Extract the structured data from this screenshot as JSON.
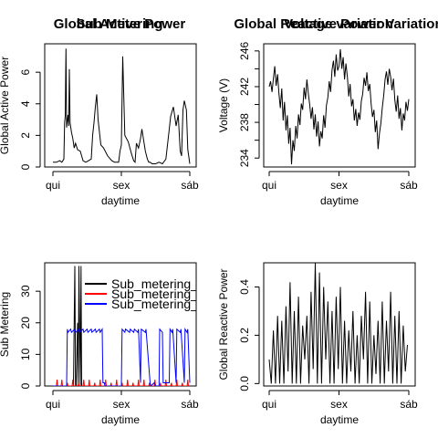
{
  "chart_data": [
    {
      "type": "line",
      "title": "Global Active Power",
      "xlabel": "daytime",
      "ylabel": "Global Active Power",
      "x_ticks": [
        "qui",
        "sex",
        "sáb"
      ],
      "y_ticks": [
        0,
        2,
        4,
        6
      ],
      "xlim": [
        0,
        2
      ],
      "ylim": [
        0,
        7.8
      ],
      "series": [
        {
          "color": "#000000",
          "x": [
            0,
            0.05,
            0.1,
            0.13,
            0.16,
            0.17,
            0.18,
            0.19,
            0.2,
            0.22,
            0.23,
            0.24,
            0.25,
            0.27,
            0.29,
            0.31,
            0.33,
            0.36,
            0.4,
            0.44,
            0.48,
            0.52,
            0.56,
            0.58,
            0.6,
            0.62,
            0.64,
            0.66,
            0.68,
            0.7,
            0.74,
            0.8,
            0.86,
            0.9,
            0.93,
            0.96,
            0.98,
            1.0,
            1.02,
            1.05,
            1.1,
            1.15,
            1.18,
            1.2,
            1.22,
            1.25,
            1.28,
            1.3,
            1.35,
            1.38,
            1.4,
            1.42,
            1.45,
            1.5,
            1.55,
            1.6,
            1.65,
            1.7,
            1.72,
            1.76,
            1.8,
            1.83,
            1.86,
            1.88,
            1.9,
            1.92,
            1.95,
            1.97,
            2.0
          ],
          "y": [
            0.3,
            0.3,
            0.4,
            0.3,
            0.5,
            2.8,
            3.2,
            7.5,
            2.5,
            3.3,
            2.6,
            6.2,
            2.8,
            2.2,
            1.8,
            1.2,
            1.5,
            1.1,
            1.0,
            0.4,
            0.3,
            0.4,
            0.5,
            2.0,
            2.8,
            3.8,
            4.6,
            3.0,
            2.2,
            1.4,
            1.2,
            0.7,
            0.4,
            0.3,
            0.3,
            0.3,
            1.0,
            1.4,
            7.0,
            2.0,
            1.6,
            0.8,
            0.4,
            0.3,
            1.5,
            1.2,
            1.8,
            2.4,
            1.0,
            0.5,
            0.3,
            0.3,
            0.2,
            0.2,
            0.3,
            0.2,
            0.5,
            2.4,
            3.2,
            3.8,
            2.6,
            3.3,
            1.0,
            0.7,
            3.6,
            4.2,
            3.6,
            1.1,
            0.2
          ]
        }
      ]
    },
    {
      "type": "line",
      "title": "Voltage variation",
      "xlabel": "daytime",
      "ylabel": "Voltage (V)",
      "x_ticks": [
        "qui",
        "sex",
        "sáb"
      ],
      "y_ticks": [
        234,
        236,
        238,
        240,
        242,
        244,
        246
      ],
      "y_tick_labels": [
        "234",
        "",
        "238",
        "",
        "242",
        "",
        "246"
      ],
      "xlim": [
        0,
        2
      ],
      "ylim": [
        233,
        246.8
      ],
      "series": [
        {
          "color": "#000000",
          "x": [
            0,
            0.02,
            0.04,
            0.06,
            0.08,
            0.1,
            0.12,
            0.14,
            0.16,
            0.18,
            0.2,
            0.22,
            0.24,
            0.26,
            0.28,
            0.3,
            0.32,
            0.34,
            0.36,
            0.38,
            0.4,
            0.42,
            0.44,
            0.46,
            0.48,
            0.5,
            0.52,
            0.54,
            0.56,
            0.58,
            0.6,
            0.62,
            0.64,
            0.66,
            0.68,
            0.7,
            0.72,
            0.74,
            0.76,
            0.78,
            0.8,
            0.82,
            0.84,
            0.86,
            0.88,
            0.9,
            0.92,
            0.94,
            0.96,
            0.98,
            1.0,
            1.02,
            1.04,
            1.06,
            1.08,
            1.1,
            1.12,
            1.14,
            1.16,
            1.18,
            1.2,
            1.22,
            1.24,
            1.26,
            1.28,
            1.3,
            1.32,
            1.34,
            1.36,
            1.38,
            1.4,
            1.42,
            1.44,
            1.46,
            1.48,
            1.5,
            1.52,
            1.54,
            1.56,
            1.58,
            1.6,
            1.62,
            1.64,
            1.66,
            1.68,
            1.7,
            1.72,
            1.74,
            1.76,
            1.78,
            1.8,
            1.82,
            1.84,
            1.86,
            1.88,
            1.9,
            1.92,
            1.94,
            1.96,
            1.98,
            2.0
          ],
          "y": [
            242.0,
            242.6,
            241.4,
            242.9,
            244.3,
            242.1,
            243.4,
            241.2,
            239.6,
            241.8,
            238.2,
            240.3,
            237.1,
            238.8,
            235.6,
            237.4,
            233.3,
            236.0,
            234.8,
            237.6,
            236.2,
            238.9,
            237.7,
            240.1,
            239.4,
            241.9,
            240.6,
            242.8,
            241.3,
            240.0,
            238.4,
            239.7,
            237.2,
            238.9,
            236.4,
            238.1,
            235.3,
            237.0,
            236.2,
            238.8,
            237.4,
            239.9,
            240.8,
            242.6,
            241.4,
            243.9,
            244.9,
            243.1,
            245.6,
            243.8,
            244.3,
            246.2,
            244.0,
            245.3,
            242.8,
            244.6,
            243.1,
            240.9,
            242.3,
            239.8,
            240.6,
            238.2,
            239.5,
            237.6,
            239.1,
            238.3,
            240.4,
            241.2,
            243.0,
            242.1,
            243.6,
            241.5,
            242.3,
            240.1,
            238.6,
            239.4,
            236.9,
            238.2,
            235.0,
            236.8,
            237.9,
            239.6,
            241.0,
            242.8,
            243.7,
            242.2,
            244.0,
            243.1,
            241.6,
            242.9,
            240.5,
            239.2,
            241.0,
            238.4,
            239.6,
            237.1,
            239.0,
            238.2,
            240.3,
            239.3,
            240.6
          ]
        }
      ]
    },
    {
      "type": "line",
      "title": "Sub Metering",
      "xlabel": "daytime",
      "ylabel": "Sub Metering",
      "x_ticks": [
        "qui",
        "sex",
        "sáb"
      ],
      "y_ticks": [
        0,
        10,
        20,
        30
      ],
      "xlim": [
        0,
        2
      ],
      "ylim": [
        0,
        39
      ],
      "legend": {
        "position": "top-right",
        "entries": [
          "Sub_metering_1",
          "Sub_metering_2",
          "Sub_metering_3"
        ]
      },
      "series": [
        {
          "name": "Sub_metering_1",
          "color": "#000000",
          "x": [
            0,
            0.3,
            0.32,
            0.33,
            0.34,
            0.36,
            0.37,
            0.38,
            0.4,
            0.41,
            0.42,
            0.44,
            2.0
          ],
          "y": [
            0,
            0,
            38,
            0,
            0,
            20,
            0,
            38,
            0,
            38,
            0,
            0,
            0
          ]
        },
        {
          "name": "Sub_metering_2",
          "color": "#ff0000",
          "x": [
            0.05,
            0.06,
            0.07,
            0.12,
            0.13,
            0.14,
            0.2,
            0.21,
            0.22,
            0.28,
            0.29,
            0.3,
            0.36,
            0.37,
            0.38,
            0.44,
            0.45,
            0.46,
            0.52,
            0.53,
            0.54,
            0.6,
            0.61,
            0.62,
            0.68,
            0.69,
            0.7,
            0.76,
            0.77,
            0.78,
            0.84,
            0.85,
            0.86,
            0.92,
            0.93,
            0.94,
            1.0,
            1.01,
            1.02,
            1.08,
            1.09,
            1.1,
            1.16,
            1.17,
            1.18,
            1.24,
            1.25,
            1.26,
            1.32,
            1.33,
            1.34,
            1.4,
            1.41,
            1.42,
            1.48,
            1.49,
            1.5,
            1.56,
            1.57,
            1.58,
            1.64,
            1.65,
            1.66,
            1.72,
            1.73,
            1.74,
            1.8,
            1.81,
            1.82,
            1.88,
            1.89,
            1.9,
            1.96,
            1.97,
            1.98
          ],
          "y": [
            0,
            2,
            0,
            0,
            2,
            0,
            0,
            1,
            0,
            0,
            2,
            0,
            0,
            1,
            0,
            0,
            2,
            0,
            0,
            2,
            0,
            0,
            1,
            0,
            0,
            2,
            0,
            0,
            2,
            0,
            0,
            1,
            0,
            0,
            2,
            0,
            0,
            1,
            0,
            0,
            2,
            0,
            0,
            1,
            0,
            0,
            2,
            0,
            0,
            2,
            0,
            0,
            1,
            0,
            0,
            2,
            0,
            0,
            1,
            0,
            0,
            2,
            0,
            0,
            1,
            0,
            0,
            2,
            0,
            0,
            1,
            0,
            0,
            2,
            0
          ]
        },
        {
          "name": "Sub_metering_3",
          "color": "#0000ff",
          "x": [
            0,
            0.2,
            0.21,
            0.22,
            0.26,
            0.27,
            0.32,
            0.33,
            0.38,
            0.39,
            0.44,
            0.45,
            0.5,
            0.51,
            0.56,
            0.57,
            0.62,
            0.63,
            0.68,
            0.69,
            0.72,
            0.73,
            0.75,
            0.76,
            1.0,
            1.01,
            1.05,
            1.06,
            1.12,
            1.13,
            1.18,
            1.19,
            1.24,
            1.25,
            1.28,
            1.29,
            1.35,
            1.36,
            1.42,
            1.43,
            1.48,
            1.5,
            1.55,
            1.56,
            1.6,
            1.61,
            1.7,
            1.71,
            1.74,
            1.75,
            1.8,
            1.81,
            1.86,
            1.87,
            1.92,
            1.93,
            1.96,
            1.97,
            2.0
          ],
          "y": [
            0,
            0,
            18,
            17,
            18,
            17,
            18,
            17,
            18,
            17,
            18,
            17,
            18,
            17,
            18,
            17,
            18,
            17,
            18,
            17,
            18,
            1,
            1,
            0,
            0,
            18,
            17,
            18,
            17,
            18,
            17,
            18,
            17,
            18,
            1,
            18,
            17,
            18,
            1,
            0,
            1,
            0,
            0,
            18,
            17,
            1,
            1,
            18,
            17,
            18,
            1,
            18,
            17,
            18,
            1,
            18,
            17,
            18,
            1
          ]
        }
      ]
    },
    {
      "type": "line",
      "title": "Global Reactive Power Variation",
      "xlabel": "daytime",
      "ylabel": "Global Reactive Power",
      "x_ticks": [
        "qui",
        "sex",
        "sáb"
      ],
      "y_ticks": [
        0.0,
        0.2,
        0.4
      ],
      "y_tick_labels": [
        "0.0",
        "0.2",
        "0.4"
      ],
      "xlim": [
        0,
        2
      ],
      "ylim": [
        -0.01,
        0.5
      ],
      "series": [
        {
          "color": "#000000",
          "x": [
            0,
            0.03,
            0.06,
            0.09,
            0.12,
            0.15,
            0.18,
            0.21,
            0.24,
            0.27,
            0.3,
            0.33,
            0.36,
            0.39,
            0.42,
            0.45,
            0.48,
            0.51,
            0.54,
            0.57,
            0.6,
            0.63,
            0.66,
            0.69,
            0.72,
            0.75,
            0.78,
            0.81,
            0.84,
            0.87,
            0.9,
            0.93,
            0.96,
            0.99,
            1.02,
            1.05,
            1.08,
            1.11,
            1.14,
            1.17,
            1.2,
            1.23,
            1.26,
            1.29,
            1.32,
            1.35,
            1.38,
            1.41,
            1.44,
            1.47,
            1.5,
            1.53,
            1.56,
            1.59,
            1.62,
            1.65,
            1.68,
            1.71,
            1.74,
            1.77,
            1.8,
            1.83,
            1.86,
            1.89,
            1.92,
            1.95,
            1.98
          ],
          "y": [
            0.1,
            0.0,
            0.22,
            0.0,
            0.28,
            0.0,
            0.26,
            0.0,
            0.32,
            0.05,
            0.42,
            0.0,
            0.3,
            0.0,
            0.36,
            0.0,
            0.24,
            0.1,
            0.28,
            0.0,
            0.38,
            0.06,
            0.5,
            0.0,
            0.46,
            0.0,
            0.4,
            0.1,
            0.34,
            0.0,
            0.3,
            0.0,
            0.36,
            0.06,
            0.4,
            0.0,
            0.26,
            0.0,
            0.22,
            0.05,
            0.3,
            0.0,
            0.2,
            0.0,
            0.28,
            0.1,
            0.38,
            0.0,
            0.34,
            0.0,
            0.2,
            0.04,
            0.26,
            0.0,
            0.34,
            0.0,
            0.26,
            0.05,
            0.38,
            0.0,
            0.28,
            0.0,
            0.3,
            0.0,
            0.24,
            0.05,
            0.16
          ]
        }
      ]
    }
  ]
}
